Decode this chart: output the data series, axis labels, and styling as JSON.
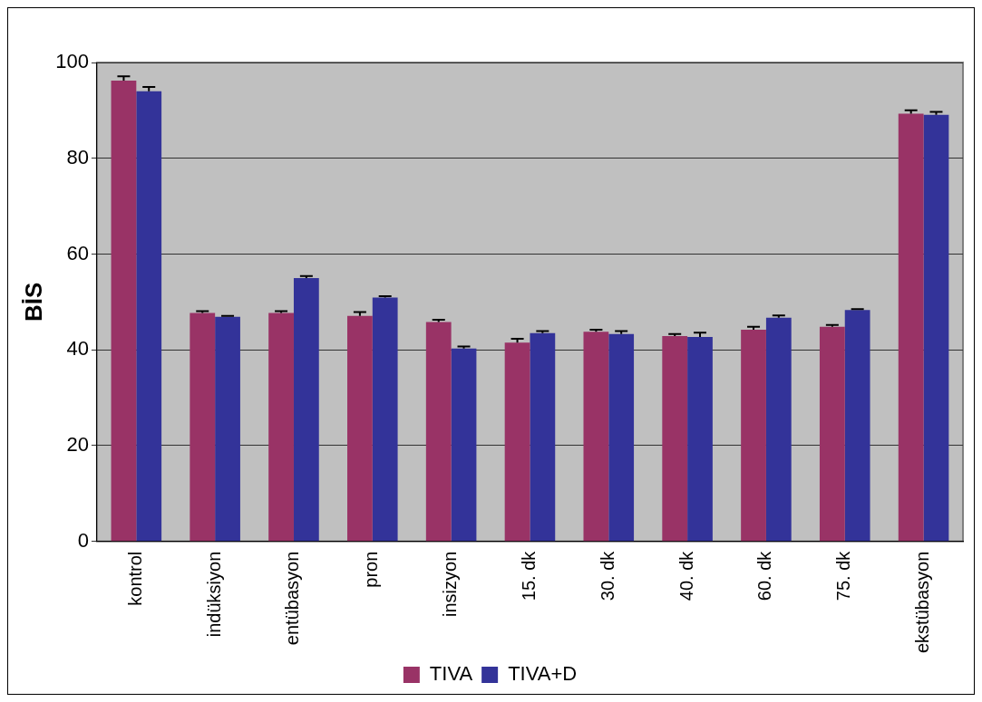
{
  "chart_data": {
    "type": "bar",
    "ylabel": "BİS",
    "categories": [
      "kontrol",
      "indüksiyon",
      "entübasyon",
      "pron",
      "insizyon",
      "15. dk",
      "30. dk",
      "40. dk",
      "60. dk",
      "75. dk",
      "ekstübasyon"
    ],
    "series": [
      {
        "name": "TIVA",
        "color": "#993366",
        "values": [
          96.2,
          47.7,
          47.7,
          47.1,
          45.8,
          41.5,
          43.8,
          42.9,
          44.2,
          44.8,
          89.3
        ],
        "errors": [
          [
            96.2,
            97.1
          ],
          [
            47.7,
            48.1
          ],
          [
            47.7,
            48.1
          ],
          [
            47.1,
            47.9
          ],
          [
            45.8,
            46.3
          ],
          [
            41.5,
            42.3
          ],
          [
            43.8,
            44.2
          ],
          [
            42.9,
            43.3
          ],
          [
            44.2,
            44.8
          ],
          [
            44.8,
            45.2
          ],
          [
            89.3,
            90.0
          ]
        ]
      },
      {
        "name": "TIVA+D",
        "color": "#333399",
        "values": [
          94.0,
          46.9,
          55.0,
          50.9,
          40.3,
          43.5,
          43.3,
          42.7,
          46.7,
          48.3,
          89.1
        ],
        "errors": [
          [
            94.0,
            94.9
          ],
          [
            46.9,
            47.1
          ],
          [
            55.0,
            55.4
          ],
          [
            50.9,
            51.2
          ],
          [
            40.3,
            40.7
          ],
          [
            43.5,
            43.9
          ],
          [
            43.3,
            43.9
          ],
          [
            42.7,
            43.6
          ],
          [
            46.7,
            47.2
          ],
          [
            48.3,
            48.5
          ],
          [
            89.1,
            89.7
          ]
        ]
      }
    ],
    "ylim": [
      0,
      100
    ],
    "yticks": [
      0,
      20,
      40,
      60,
      80,
      100
    ],
    "grid": "y",
    "legend": "bottom"
  }
}
